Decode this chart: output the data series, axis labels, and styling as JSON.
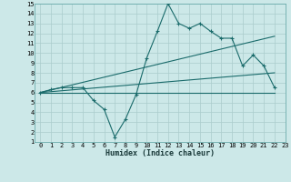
{
  "xlabel": "Humidex (Indice chaleur)",
  "bg_color": "#cce8e8",
  "grid_color": "#aacccc",
  "line_color": "#1a6b6b",
  "xlim": [
    -0.5,
    23
  ],
  "ylim": [
    1,
    15
  ],
  "xtick_labels": [
    "0",
    "1",
    "2",
    "3",
    "4",
    "5",
    "6",
    "7",
    "8",
    "9",
    "10",
    "11",
    "12",
    "13",
    "14",
    "15",
    "16",
    "17",
    "18",
    "19",
    "20",
    "21",
    "22",
    "23"
  ],
  "xtick_pos": [
    0,
    1,
    2,
    3,
    4,
    5,
    6,
    7,
    8,
    9,
    10,
    11,
    12,
    13,
    14,
    15,
    16,
    17,
    18,
    19,
    20,
    21,
    22,
    23
  ],
  "ytick_pos": [
    1,
    2,
    3,
    4,
    5,
    6,
    7,
    8,
    9,
    10,
    11,
    12,
    13,
    14,
    15
  ],
  "ytick_labels": [
    "1",
    "2",
    "3",
    "4",
    "5",
    "6",
    "7",
    "8",
    "9",
    "10",
    "11",
    "12",
    "13",
    "14",
    "15"
  ],
  "line1_x": [
    0,
    1,
    2,
    3,
    4,
    5,
    6,
    7,
    8,
    9,
    10,
    11,
    12,
    13,
    14,
    15,
    16,
    17,
    18,
    19,
    20,
    21,
    22
  ],
  "line1_y": [
    6.0,
    6.3,
    6.5,
    6.5,
    6.5,
    5.2,
    4.3,
    1.5,
    3.3,
    5.8,
    9.5,
    12.2,
    15.0,
    13.0,
    12.5,
    13.0,
    12.2,
    11.5,
    11.5,
    8.7,
    9.8,
    8.7,
    6.5
  ],
  "line2_x": [
    0,
    22
  ],
  "line2_y": [
    6.0,
    11.7
  ],
  "line3_x": [
    0,
    22
  ],
  "line3_y": [
    6.0,
    8.0
  ],
  "line4_x": [
    0,
    22
  ],
  "line4_y": [
    6.0,
    6.0
  ]
}
